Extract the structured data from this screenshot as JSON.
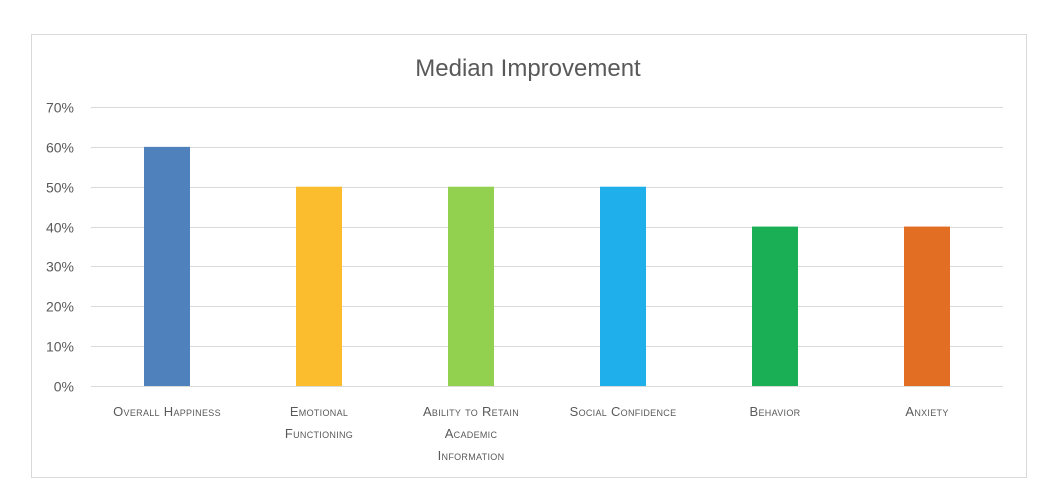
{
  "chart_data": {
    "type": "bar",
    "title": "Median Improvement",
    "categories": [
      "Overall Happiness",
      "Emotional Functioning",
      "Ability to Retain Academic Information",
      "Social Confidence",
      "Behavior",
      "Anxiety"
    ],
    "category_lines": [
      [
        "Overall Happiness"
      ],
      [
        "Emotional",
        "Functioning"
      ],
      [
        "Ability to Retain",
        "Academic",
        "Information"
      ],
      [
        "Social Confidence"
      ],
      [
        "Behavior"
      ],
      [
        "Anxiety"
      ]
    ],
    "values": [
      0.6,
      0.5,
      0.5,
      0.5,
      0.4,
      0.4
    ],
    "colors": [
      "#4f81bd",
      "#fbbc2e",
      "#92d050",
      "#1fb0ec",
      "#1aae55",
      "#e26e24"
    ],
    "yticks": [
      "0%",
      "10%",
      "20%",
      "30%",
      "40%",
      "50%",
      "60%",
      "70%"
    ],
    "ylim": [
      0,
      0.7
    ],
    "grid": true,
    "legend": "none"
  }
}
